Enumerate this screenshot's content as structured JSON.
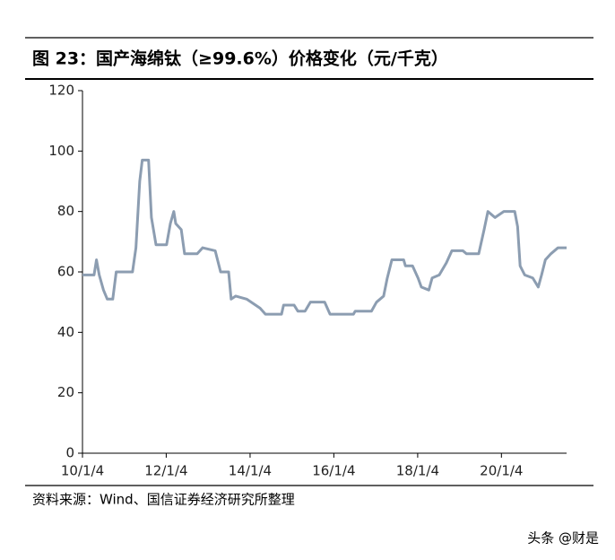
{
  "chart_data": {
    "type": "line",
    "title": "图 23：国产海绵钛（≥99.6%）价格变化（元/千克）",
    "source": "资料来源：Wind、国信证券经济研究所整理",
    "watermark": "头条 @财是",
    "x": [
      "2010-01-04",
      "2010-04-15",
      "2010-05-06",
      "2010-05-30",
      "2010-07-06",
      "2010-08-08",
      "2010-09-25",
      "2010-10-25",
      "2011-03-16",
      "2011-04-15",
      "2011-05-18",
      "2011-06-09",
      "2011-08-03",
      "2011-08-28",
      "2011-10-07",
      "2012-01-07",
      "2012-02-09",
      "2012-03-10",
      "2012-03-27",
      "2012-05-14",
      "2012-06-12",
      "2012-09-30",
      "2012-11-16",
      "2013-03-06",
      "2013-04-22",
      "2013-07-01",
      "2013-07-23",
      "2013-09-01",
      "2013-12-05",
      "2014-04-01",
      "2014-05-18",
      "2014-10-05",
      "2014-10-23",
      "2015-01-23",
      "2015-02-25",
      "2015-04-28",
      "2015-06-14",
      "2015-10-16",
      "2015-12-02",
      "2016-06-23",
      "2016-07-08",
      "2016-11-27",
      "2017-01-10",
      "2017-03-13",
      "2017-04-14",
      "2017-05-24",
      "2017-09-04",
      "2017-09-19",
      "2017-11-20",
      "2018-01-07",
      "2018-02-05",
      "2018-04-11",
      "2018-05-10",
      "2018-07-11",
      "2018-09-11",
      "2018-10-29",
      "2019-02-02",
      "2019-03-06",
      "2019-06-20",
      "2019-08-06",
      "2019-09-08",
      "2019-11-09",
      "2020-01-25",
      "2020-04-29",
      "2020-05-24",
      "2020-06-15",
      "2020-07-25",
      "2020-10-03",
      "2020-11-20",
      "2020-12-19",
      "2021-01-21",
      "2021-03-10",
      "2021-05-11",
      "2021-07-25"
    ],
    "series": [
      {
        "color": "#8c9db1",
        "values": [
          59,
          59,
          64,
          59,
          54,
          51,
          51,
          60,
          60,
          68,
          90,
          97,
          97,
          78,
          69,
          69,
          76,
          80,
          76,
          74,
          66,
          66,
          68,
          67,
          60,
          60,
          51,
          52,
          51,
          48,
          46,
          46,
          49,
          49,
          47,
          47,
          50,
          50,
          46,
          46,
          47,
          47,
          50,
          52,
          58,
          64,
          64,
          62,
          62,
          58,
          55,
          54,
          58,
          59,
          63,
          67,
          67,
          66,
          66,
          74,
          80,
          78,
          80,
          80,
          75,
          62,
          59,
          58,
          55,
          59,
          64,
          66,
          68,
          68
        ]
      }
    ],
    "xlim": [
      "2010-01-04",
      "2021-07-25"
    ],
    "xticks": [
      {
        "value": "2010-01-04",
        "label": "10/1/4"
      },
      {
        "value": "2012-01-04",
        "label": "12/1/4"
      },
      {
        "value": "2014-01-04",
        "label": "14/1/4"
      },
      {
        "value": "2016-01-04",
        "label": "16/1/4"
      },
      {
        "value": "2018-01-04",
        "label": "18/1/4"
      },
      {
        "value": "2020-01-04",
        "label": "20/1/4"
      }
    ],
    "ylim": [
      0,
      120
    ],
    "yticks": [
      0,
      20,
      40,
      60,
      80,
      100,
      120
    ],
    "grid": false
  }
}
